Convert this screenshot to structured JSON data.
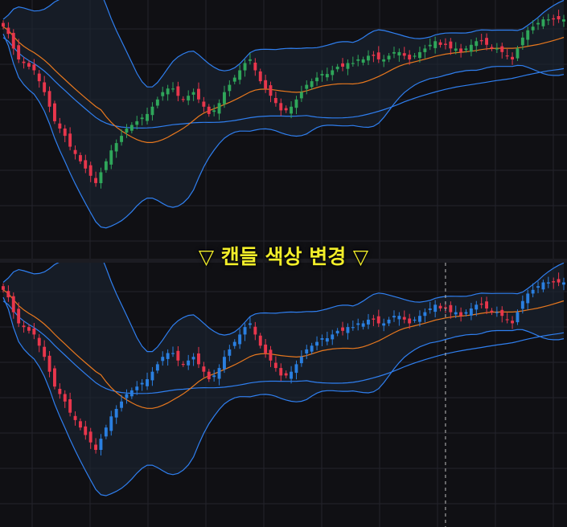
{
  "caption": "▽ 캔들 색상 변경 ▽",
  "colors": {
    "background": "#101014",
    "grid": "#24242c",
    "band_line": "#2f7ff0",
    "band_fill": "#1a2532",
    "mid_line": "#e8781e",
    "slow_line": "#2f7ff0",
    "top_up": "#2fa65a",
    "top_down": "#e8364c",
    "bottom_up": "#2a7fe0",
    "bottom_down": "#e8364c",
    "crosshair": "#bdbdbd"
  },
  "chart_data": [
    {
      "type": "candlestick",
      "panel": "top",
      "candle_colors": {
        "up": "green",
        "down": "red"
      },
      "y_range": [
        0,
        100
      ],
      "indicators": [
        "bollinger_upper",
        "bollinger_middle",
        "bollinger_lower",
        "moving_average"
      ],
      "close_series": [
        96,
        92,
        84,
        78,
        76,
        74,
        72,
        66,
        60,
        52,
        44,
        40,
        36,
        30,
        26,
        22,
        18,
        14,
        10,
        16,
        22,
        28,
        32,
        36,
        40,
        42,
        44,
        46,
        48,
        52,
        56,
        60,
        62,
        62,
        58,
        56,
        58,
        60,
        56,
        52,
        48,
        50,
        54,
        60,
        64,
        68,
        72,
        76,
        78,
        72,
        66,
        62,
        58,
        54,
        50,
        50,
        52,
        56,
        60,
        64,
        66,
        68,
        70,
        70,
        72,
        74,
        74,
        76,
        76,
        78,
        78,
        80,
        80,
        78,
        78,
        80,
        82,
        82,
        80,
        78,
        80,
        82,
        84,
        86,
        88,
        86,
        86,
        84,
        84,
        82,
        84,
        86,
        88,
        88,
        86,
        84,
        84,
        82,
        80,
        78,
        84,
        90,
        94,
        96,
        98,
        100,
        100,
        100,
        100,
        100
      ]
    },
    {
      "type": "candlestick",
      "panel": "bottom",
      "candle_colors": {
        "up": "blue",
        "down": "red"
      },
      "y_range": [
        0,
        100
      ],
      "indicators": [
        "bollinger_upper",
        "bollinger_middle",
        "bollinger_lower",
        "moving_average"
      ],
      "crosshair_index": 86,
      "close_series": [
        96,
        92,
        84,
        78,
        76,
        74,
        72,
        66,
        60,
        52,
        44,
        40,
        36,
        30,
        26,
        22,
        18,
        14,
        10,
        16,
        22,
        28,
        32,
        36,
        40,
        42,
        44,
        46,
        48,
        52,
        56,
        60,
        62,
        62,
        58,
        56,
        58,
        60,
        56,
        52,
        48,
        50,
        54,
        60,
        64,
        68,
        72,
        76,
        78,
        72,
        66,
        62,
        58,
        54,
        50,
        50,
        52,
        56,
        60,
        64,
        66,
        68,
        70,
        70,
        72,
        74,
        74,
        76,
        76,
        78,
        78,
        80,
        80,
        78,
        78,
        80,
        82,
        82,
        80,
        78,
        80,
        82,
        84,
        86,
        88,
        86,
        86,
        84,
        84,
        82,
        84,
        86,
        88,
        88,
        86,
        84,
        84,
        82,
        80,
        78,
        84,
        90,
        94,
        96,
        98,
        100,
        100,
        100,
        100,
        100
      ]
    }
  ]
}
